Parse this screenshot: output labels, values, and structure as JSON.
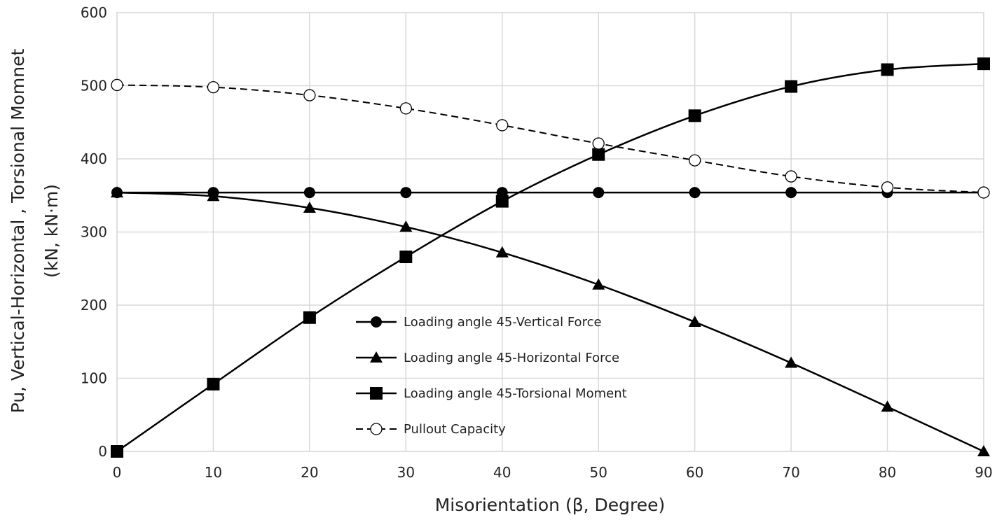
{
  "chart_data": {
    "type": "line",
    "title": "",
    "xlabel": "Misorientation (β, Degree)",
    "ylabel_lines": [
      "Pu, Vertical-Horizontal , Torsional Momnet",
      "(kN, kN·m)"
    ],
    "xlim": [
      0,
      90
    ],
    "ylim": [
      0,
      600
    ],
    "x_ticks": [
      0,
      10,
      20,
      30,
      40,
      50,
      60,
      70,
      80,
      90
    ],
    "y_ticks": [
      0,
      100,
      200,
      300,
      400,
      500,
      600
    ],
    "x_tick_labels": [
      "0",
      "10",
      "20",
      "30",
      "40",
      "50",
      "60",
      "70",
      "80",
      "90"
    ],
    "y_tick_labels": [
      "0",
      "100",
      "200",
      "300",
      "400",
      "500",
      "600"
    ],
    "grid": true,
    "legend_position": "center",
    "x": [
      0,
      10,
      20,
      30,
      40,
      50,
      60,
      70,
      80,
      90
    ],
    "series": [
      {
        "name": "Loading angle 45-Vertical Force",
        "values": [
          354,
          354,
          354,
          354,
          354,
          354,
          354,
          354,
          354,
          354
        ],
        "marker": "circle",
        "line_style": "solid",
        "color": "#000000"
      },
      {
        "name": "Loading angle 45-Horizontal Force",
        "values": [
          354,
          349,
          333,
          307,
          272,
          228,
          177,
          121,
          61,
          0
        ],
        "marker": "triangle",
        "line_style": "solid",
        "color": "#000000"
      },
      {
        "name": "Loading angle 45-Torsional Moment",
        "values": [
          0,
          92,
          183,
          266,
          342,
          406,
          459,
          499,
          522,
          530
        ],
        "marker": "square",
        "line_style": "solid",
        "color": "#000000"
      },
      {
        "name": "Pullout Capacity",
        "values": [
          501,
          498,
          487,
          469,
          446,
          421,
          398,
          376,
          361,
          354
        ],
        "marker": "open-circle",
        "line_style": "dashed",
        "color": "#000000"
      }
    ]
  }
}
